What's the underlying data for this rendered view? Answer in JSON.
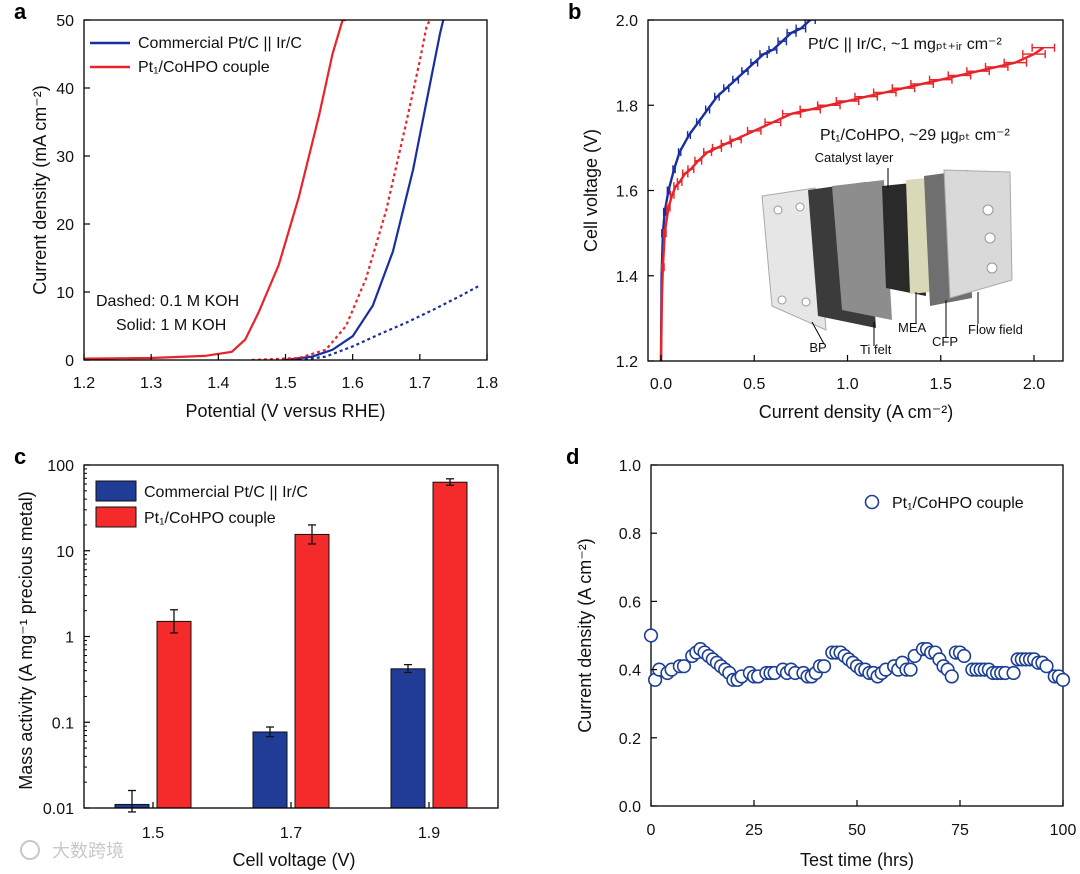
{
  "colors": {
    "blue": "#1a2f9e",
    "red": "#e8242a",
    "bar_blue": "#203c96",
    "bar_red": "#f52a2a",
    "marker_blue": "#1c3f94"
  },
  "chart_data": [
    {
      "id": "a",
      "panel_label": "a",
      "type": "line",
      "xlabel": "Potential (V versus RHE)",
      "ylabel": "Current density (mA cm⁻²)",
      "xlim": [
        1.2,
        1.8
      ],
      "ylim": [
        0,
        50
      ],
      "xticks": [
        "1.2",
        "1.3",
        "1.4",
        "1.5",
        "1.6",
        "1.7",
        "1.8"
      ],
      "yticks": [
        "0",
        "10",
        "20",
        "30",
        "40",
        "50"
      ],
      "legend": [
        "Commercial Pt/C || Ir/C",
        "Pt₁/CoHPO couple"
      ],
      "annotations": [
        "Dashed: 0.1 M KOH",
        "Solid: 1 M KOH"
      ],
      "series": [
        {
          "name": "Commercial Pt/C || Ir/C",
          "style": "solid",
          "color": "blue",
          "x": [
            1.5,
            1.54,
            1.57,
            1.6,
            1.63,
            1.66,
            1.69,
            1.71,
            1.73,
            1.735
          ],
          "y": [
            0,
            0.5,
            1.5,
            3.5,
            8,
            16,
            28,
            38,
            48,
            50
          ]
        },
        {
          "name": "Commercial Pt/C || Ir/C (0.1 M KOH)",
          "style": "dashed",
          "color": "blue",
          "x": [
            1.52,
            1.56,
            1.6,
            1.64,
            1.68,
            1.72,
            1.76,
            1.79
          ],
          "y": [
            0,
            0.5,
            2,
            3.8,
            5.5,
            7.4,
            9.4,
            11
          ]
        },
        {
          "name": "Pt₁/CoHPO couple",
          "style": "solid",
          "color": "red",
          "x": [
            1.2,
            1.3,
            1.38,
            1.42,
            1.44,
            1.46,
            1.49,
            1.52,
            1.55,
            1.57,
            1.585,
            1.59
          ],
          "y": [
            0.2,
            0.3,
            0.6,
            1.2,
            3,
            7,
            14,
            24,
            36,
            45,
            50,
            50
          ]
        },
        {
          "name": "Pt₁/CoHPO couple (0.1 M KOH)",
          "style": "dashed",
          "color": "red",
          "x": [
            1.45,
            1.52,
            1.56,
            1.59,
            1.62,
            1.65,
            1.68,
            1.7,
            1.71,
            1.715
          ],
          "y": [
            0,
            0.3,
            1.5,
            5,
            12,
            22,
            35,
            44,
            49,
            50
          ]
        }
      ]
    },
    {
      "id": "b",
      "panel_label": "b",
      "type": "line",
      "xlabel": "Current density (A cm⁻²)",
      "ylabel": "Cell voltage (V)",
      "xlim": [
        0,
        2.1
      ],
      "ylim": [
        1.2,
        2.0
      ],
      "xticks": [
        "0.0",
        "0.5",
        "1.0",
        "1.5",
        "2.0"
      ],
      "yticks": [
        "1.2",
        "1.4",
        "1.6",
        "1.8",
        "2.0"
      ],
      "series": [
        {
          "name": "Pt/C || Ir/C, ~1 mgₚₜ₊ᵢᵣ cm⁻²",
          "color": "blue",
          "x": [
            0.0,
            0.003,
            0.01,
            0.02,
            0.04,
            0.07,
            0.1,
            0.15,
            0.2,
            0.25,
            0.3,
            0.35,
            0.4,
            0.45,
            0.5,
            0.55,
            0.6,
            0.65,
            0.7,
            0.75,
            0.8
          ],
          "y": [
            1.2,
            1.4,
            1.5,
            1.55,
            1.6,
            1.65,
            1.69,
            1.73,
            1.76,
            1.79,
            1.82,
            1.84,
            1.86,
            1.88,
            1.9,
            1.92,
            1.93,
            1.95,
            1.97,
            1.98,
            2.0
          ],
          "xerr": 0.03
        },
        {
          "name": "Pt₁/CoHPO, ~29 μgₚₜ cm⁻²",
          "color": "red",
          "x": [
            0.0,
            0.005,
            0.01,
            0.02,
            0.04,
            0.06,
            0.08,
            0.1,
            0.13,
            0.16,
            0.2,
            0.25,
            0.3,
            0.35,
            0.4,
            0.5,
            0.6,
            0.7,
            0.8,
            0.9,
            1.0,
            1.1,
            1.2,
            1.3,
            1.4,
            1.5,
            1.6,
            1.7,
            1.8,
            1.9,
            2.0,
            2.05
          ],
          "y": [
            1.2,
            1.35,
            1.42,
            1.5,
            1.56,
            1.59,
            1.61,
            1.62,
            1.64,
            1.65,
            1.67,
            1.69,
            1.7,
            1.71,
            1.72,
            1.74,
            1.76,
            1.78,
            1.79,
            1.8,
            1.81,
            1.82,
            1.83,
            1.84,
            1.85,
            1.86,
            1.87,
            1.88,
            1.89,
            1.9,
            1.92,
            1.935
          ],
          "xerr": 0.06
        }
      ],
      "inset_labels": [
        "Catalyst layer",
        "BP",
        "Ti felt",
        "MEA",
        "CFP",
        "Flow field"
      ]
    },
    {
      "id": "c",
      "panel_label": "c",
      "type": "bar",
      "xlabel": "Cell voltage (V)",
      "ylabel": "Mass activity (A mg⁻¹ precious metal)",
      "yscale": "log",
      "ylim": [
        0.01,
        100
      ],
      "yticks": [
        "0.01",
        "0.1",
        "1",
        "10",
        "100"
      ],
      "categories": [
        "1.5",
        "1.7",
        "1.9"
      ],
      "legend": [
        "Commercial Pt/C || Ir/C",
        "Pt₁/CoHPO couple"
      ],
      "series": [
        {
          "name": "Commercial Pt/C || Ir/C",
          "color": "bar_blue",
          "values": [
            0.011,
            0.077,
            0.42
          ],
          "err_low": [
            0.009,
            0.068,
            0.38
          ],
          "err_high": [
            0.016,
            0.088,
            0.47
          ]
        },
        {
          "name": "Pt₁/CoHPO couple",
          "color": "bar_red",
          "values": [
            1.5,
            15.5,
            63
          ],
          "err_low": [
            1.1,
            12,
            58
          ],
          "err_high": [
            2.05,
            20,
            69
          ]
        }
      ]
    },
    {
      "id": "d",
      "panel_label": "d",
      "type": "scatter",
      "xlabel": "Test time (hrs)",
      "ylabel": "Current density (A cm⁻²)",
      "xlim": [
        0,
        100
      ],
      "ylim": [
        0,
        1.0
      ],
      "xticks": [
        "0",
        "25",
        "50",
        "75",
        "100"
      ],
      "yticks": [
        "0.0",
        "0.2",
        "0.4",
        "0.6",
        "0.8",
        "1.0"
      ],
      "legend": [
        "Pt₁/CoHPO couple"
      ],
      "series": [
        {
          "name": "Pt₁/CoHPO couple",
          "color": "marker_blue",
          "x": [
            0,
            1,
            2,
            4,
            5,
            7,
            8,
            10,
            11,
            12,
            13,
            14,
            15,
            16,
            17,
            18,
            19,
            20,
            21,
            22,
            24,
            25,
            26,
            28,
            29,
            30,
            32,
            33,
            34,
            35,
            37,
            38,
            39,
            40,
            41,
            42,
            44,
            45,
            46,
            47,
            48,
            49,
            50,
            51,
            52,
            53,
            54,
            55,
            56,
            57,
            59,
            60,
            61,
            62,
            63,
            64,
            66,
            67,
            68,
            69,
            70,
            71,
            72,
            73,
            74,
            75,
            76,
            78,
            79,
            80,
            81,
            82,
            83,
            84,
            85,
            86,
            88,
            89,
            90,
            91,
            92,
            93,
            94,
            95,
            96,
            98,
            99,
            100
          ],
          "y": [
            0.5,
            0.37,
            0.4,
            0.39,
            0.4,
            0.41,
            0.41,
            0.44,
            0.45,
            0.46,
            0.45,
            0.44,
            0.43,
            0.42,
            0.41,
            0.4,
            0.39,
            0.37,
            0.37,
            0.38,
            0.39,
            0.38,
            0.38,
            0.39,
            0.39,
            0.39,
            0.4,
            0.39,
            0.4,
            0.39,
            0.39,
            0.38,
            0.38,
            0.39,
            0.41,
            0.41,
            0.45,
            0.45,
            0.45,
            0.44,
            0.43,
            0.42,
            0.41,
            0.4,
            0.4,
            0.39,
            0.39,
            0.38,
            0.39,
            0.4,
            0.41,
            0.4,
            0.42,
            0.4,
            0.4,
            0.44,
            0.46,
            0.46,
            0.45,
            0.45,
            0.43,
            0.41,
            0.4,
            0.38,
            0.45,
            0.45,
            0.44,
            0.4,
            0.4,
            0.4,
            0.4,
            0.4,
            0.39,
            0.39,
            0.39,
            0.39,
            0.39,
            0.43,
            0.43,
            0.43,
            0.43,
            0.43,
            0.42,
            0.42,
            0.41,
            0.38,
            0.38,
            0.37
          ]
        }
      ]
    }
  ],
  "watermark": "大数跨境"
}
